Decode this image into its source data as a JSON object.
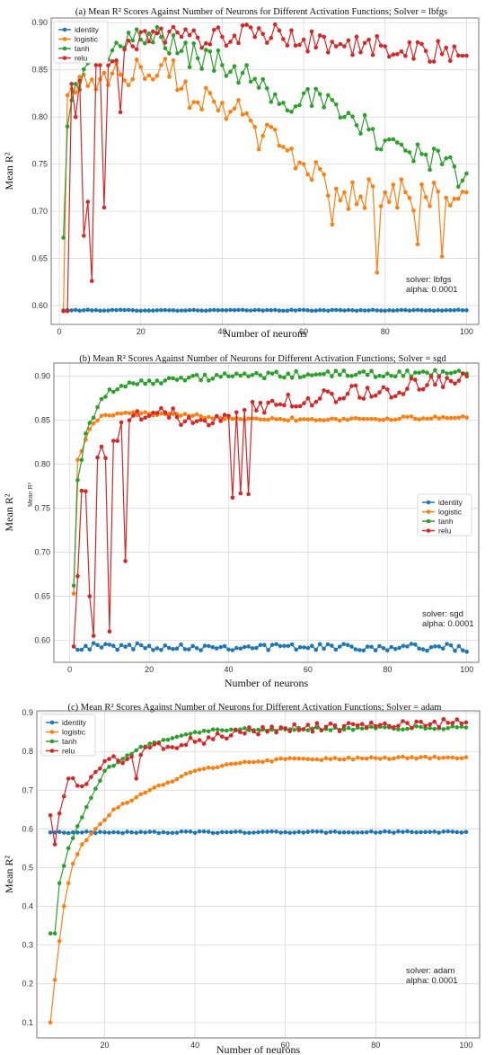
{
  "colors": {
    "identity": "#1f77b4",
    "logistic": "#ff7f0e",
    "tanh": "#2ca02c",
    "relu": "#d62728"
  },
  "chart_data": [
    {
      "type": "line",
      "title": "(a) Mean R² Scores Against Number of Neurons for Different Activation Functions; Solver = lbfgs",
      "xlabel": "Number of neurons",
      "ylabel": "Mean R²",
      "xlim": [
        -2,
        103
      ],
      "ylim": [
        0.58,
        0.905
      ],
      "xticks": [
        0,
        20,
        40,
        60,
        80,
        100
      ],
      "yticks": [
        0.6,
        0.65,
        0.7,
        0.75,
        0.8,
        0.85,
        0.9
      ],
      "grid": true,
      "legend_position": "top-left",
      "annotation": [
        "solver: lbfgs",
        "alpha: 0.0001"
      ],
      "series_names": [
        "identity",
        "logistic",
        "tanh",
        "relu"
      ],
      "series": {
        "identity": {
          "anchors": [
            [
              1,
              0.595
            ],
            [
              100,
              0.595
            ]
          ],
          "noise": 0.0005
        },
        "logistic": {
          "anchors": [
            [
              1,
              0.594
            ],
            [
              2,
              0.823
            ],
            [
              4,
              0.826
            ],
            [
              6,
              0.845
            ],
            [
              10,
              0.84
            ],
            [
              15,
              0.845
            ],
            [
              20,
              0.853
            ],
            [
              25,
              0.855
            ],
            [
              28,
              0.86
            ],
            [
              30,
              0.83
            ],
            [
              40,
              0.815
            ],
            [
              50,
              0.78
            ],
            [
              60,
              0.75
            ],
            [
              70,
              0.72
            ],
            [
              80,
              0.72
            ],
            [
              90,
              0.715
            ],
            [
              100,
              0.72
            ]
          ],
          "noise": 0.018,
          "spikes": [
            [
              78,
              0.635
            ],
            [
              94,
              0.652
            ],
            [
              88,
              0.665
            ],
            [
              67,
              0.686
            ]
          ]
        },
        "tanh": {
          "anchors": [
            [
              1,
              0.672
            ],
            [
              2,
              0.79
            ],
            [
              4,
              0.835
            ],
            [
              7,
              0.857
            ],
            [
              10,
              0.865
            ],
            [
              15,
              0.875
            ],
            [
              20,
              0.882
            ],
            [
              25,
              0.885
            ],
            [
              30,
              0.87
            ],
            [
              40,
              0.855
            ],
            [
              50,
              0.84
            ],
            [
              55,
              0.815
            ],
            [
              60,
              0.825
            ],
            [
              70,
              0.8
            ],
            [
              80,
              0.775
            ],
            [
              90,
              0.76
            ],
            [
              100,
              0.74
            ]
          ],
          "noise": 0.015,
          "spikes": [
            [
              98,
              0.726
            ]
          ]
        },
        "relu": {
          "anchors": [
            [
              1,
              0.594
            ],
            [
              2,
              0.594
            ],
            [
              3,
              0.835
            ],
            [
              10,
              0.855
            ],
            [
              14,
              0.86
            ],
            [
              18,
              0.875
            ],
            [
              20,
              0.89
            ],
            [
              30,
              0.885
            ],
            [
              40,
              0.885
            ],
            [
              50,
              0.888
            ],
            [
              60,
              0.882
            ],
            [
              70,
              0.875
            ],
            [
              80,
              0.875
            ],
            [
              90,
              0.87
            ],
            [
              100,
              0.865
            ]
          ],
          "noise": 0.012,
          "spikes": [
            [
              4,
              0.8
            ],
            [
              6,
              0.674
            ],
            [
              7,
              0.71
            ],
            [
              8,
              0.626
            ],
            [
              11,
              0.704
            ],
            [
              15,
              0.805
            ],
            [
              9,
              0.855
            ]
          ]
        }
      }
    },
    {
      "type": "line",
      "title": "(b) Mean R² Scores Against Number of Neurons for Different Activation Functions; Solver = sgd",
      "xlabel": "Number of neurons",
      "ylabel": "Mean R²",
      "ylabel_inner": "Mean R²",
      "xlim": [
        -4,
        103
      ],
      "ylim": [
        0.575,
        0.915
      ],
      "xticks": [
        0,
        20,
        40,
        60,
        80,
        100
      ],
      "yticks": [
        0.6,
        0.65,
        0.7,
        0.75,
        0.8,
        0.85,
        0.9
      ],
      "grid": true,
      "legend_position": "center-right",
      "annotation": [
        "solver: sgd",
        "alpha: 0.0001"
      ],
      "series_names": [
        "identity",
        "logistic",
        "tanh",
        "relu"
      ],
      "series": {
        "identity": {
          "anchors": [
            [
              1,
              0.593
            ],
            [
              100,
              0.592
            ]
          ],
          "noise": 0.004,
          "spikes": [
            [
              100,
              0.587
            ]
          ]
        },
        "logistic": {
          "anchors": [
            [
              1,
              0.653
            ],
            [
              2,
              0.805
            ],
            [
              5,
              0.84
            ],
            [
              8,
              0.855
            ],
            [
              15,
              0.858
            ],
            [
              40,
              0.853
            ],
            [
              60,
              0.851
            ],
            [
              80,
              0.852
            ],
            [
              100,
              0.853
            ]
          ],
          "noise": 0.002
        },
        "tanh": {
          "anchors": [
            [
              1,
              0.662
            ],
            [
              2,
              0.782
            ],
            [
              4,
              0.835
            ],
            [
              7,
              0.865
            ],
            [
              10,
              0.885
            ],
            [
              20,
              0.895
            ],
            [
              40,
              0.9
            ],
            [
              60,
              0.902
            ],
            [
              80,
              0.903
            ],
            [
              100,
              0.903
            ]
          ],
          "noise": 0.004
        },
        "relu": {
          "anchors": [
            [
              1,
              0.593
            ],
            [
              3,
              0.77
            ],
            [
              10,
              0.82
            ],
            [
              15,
              0.85
            ],
            [
              20,
              0.855
            ],
            [
              30,
              0.853
            ],
            [
              40,
              0.855
            ],
            [
              50,
              0.87
            ],
            [
              60,
              0.875
            ],
            [
              70,
              0.88
            ],
            [
              80,
              0.885
            ],
            [
              90,
              0.89
            ],
            [
              100,
              0.9
            ]
          ],
          "noise": 0.01,
          "spikes": [
            [
              5,
              0.65
            ],
            [
              6,
              0.605
            ],
            [
              8,
              0.82
            ],
            [
              10,
              0.61
            ],
            [
              14,
              0.69
            ],
            [
              41,
              0.762
            ],
            [
              43,
              0.767
            ],
            [
              45,
              0.766
            ]
          ]
        }
      }
    },
    {
      "type": "line",
      "title": "(c) Mean R² Scores Against Number of Neurons for Different Activation Functions; Solver = adam",
      "xlabel": "Number of neurons",
      "ylabel": "Mean R²",
      "xlim": [
        5,
        103
      ],
      "ylim": [
        0.06,
        0.905
      ],
      "xticks": [
        20,
        40,
        60,
        80,
        100
      ],
      "yticks": [
        0.1,
        0.2,
        0.3,
        0.4,
        0.5,
        0.6,
        0.7,
        0.8,
        0.9
      ],
      "grid": true,
      "legend_position": "top-left",
      "annotation": [
        "solver: adam",
        "alpha: 0.0001"
      ],
      "series_names": [
        "identity",
        "logistic",
        "tanh",
        "relu"
      ],
      "series": {
        "identity": {
          "anchors": [
            [
              8,
              0.591
            ],
            [
              100,
              0.592
            ]
          ],
          "noise": 0.002
        },
        "logistic": {
          "anchors": [
            [
              8,
              0.1
            ],
            [
              9,
              0.21
            ],
            [
              10,
              0.31
            ],
            [
              11,
              0.4
            ],
            [
              12,
              0.46
            ],
            [
              13,
              0.51
            ],
            [
              15,
              0.56
            ],
            [
              18,
              0.6
            ],
            [
              22,
              0.65
            ],
            [
              30,
              0.7
            ],
            [
              40,
              0.75
            ],
            [
              50,
              0.77
            ],
            [
              60,
              0.78
            ],
            [
              70,
              0.78
            ],
            [
              80,
              0.783
            ],
            [
              100,
              0.785
            ]
          ],
          "noise": 0.003
        },
        "tanh": {
          "anchors": [
            [
              8,
              0.33
            ],
            [
              9,
              0.33
            ],
            [
              10,
              0.46
            ],
            [
              12,
              0.55
            ],
            [
              15,
              0.63
            ],
            [
              20,
              0.75
            ],
            [
              25,
              0.79
            ],
            [
              30,
              0.82
            ],
            [
              40,
              0.85
            ],
            [
              50,
              0.857
            ],
            [
              60,
              0.857
            ],
            [
              80,
              0.86
            ],
            [
              100,
              0.862
            ]
          ],
          "noise": 0.004
        },
        "relu": {
          "anchors": [
            [
              8,
              0.635
            ],
            [
              9,
              0.56
            ],
            [
              10,
              0.64
            ],
            [
              12,
              0.73
            ],
            [
              15,
              0.71
            ],
            [
              20,
              0.775
            ],
            [
              25,
              0.78
            ],
            [
              30,
              0.81
            ],
            [
              40,
              0.825
            ],
            [
              50,
              0.85
            ],
            [
              60,
              0.86
            ],
            [
              80,
              0.865
            ],
            [
              100,
              0.875
            ]
          ],
          "noise": 0.012,
          "spikes": [
            [
              27,
              0.73
            ]
          ]
        }
      }
    }
  ]
}
